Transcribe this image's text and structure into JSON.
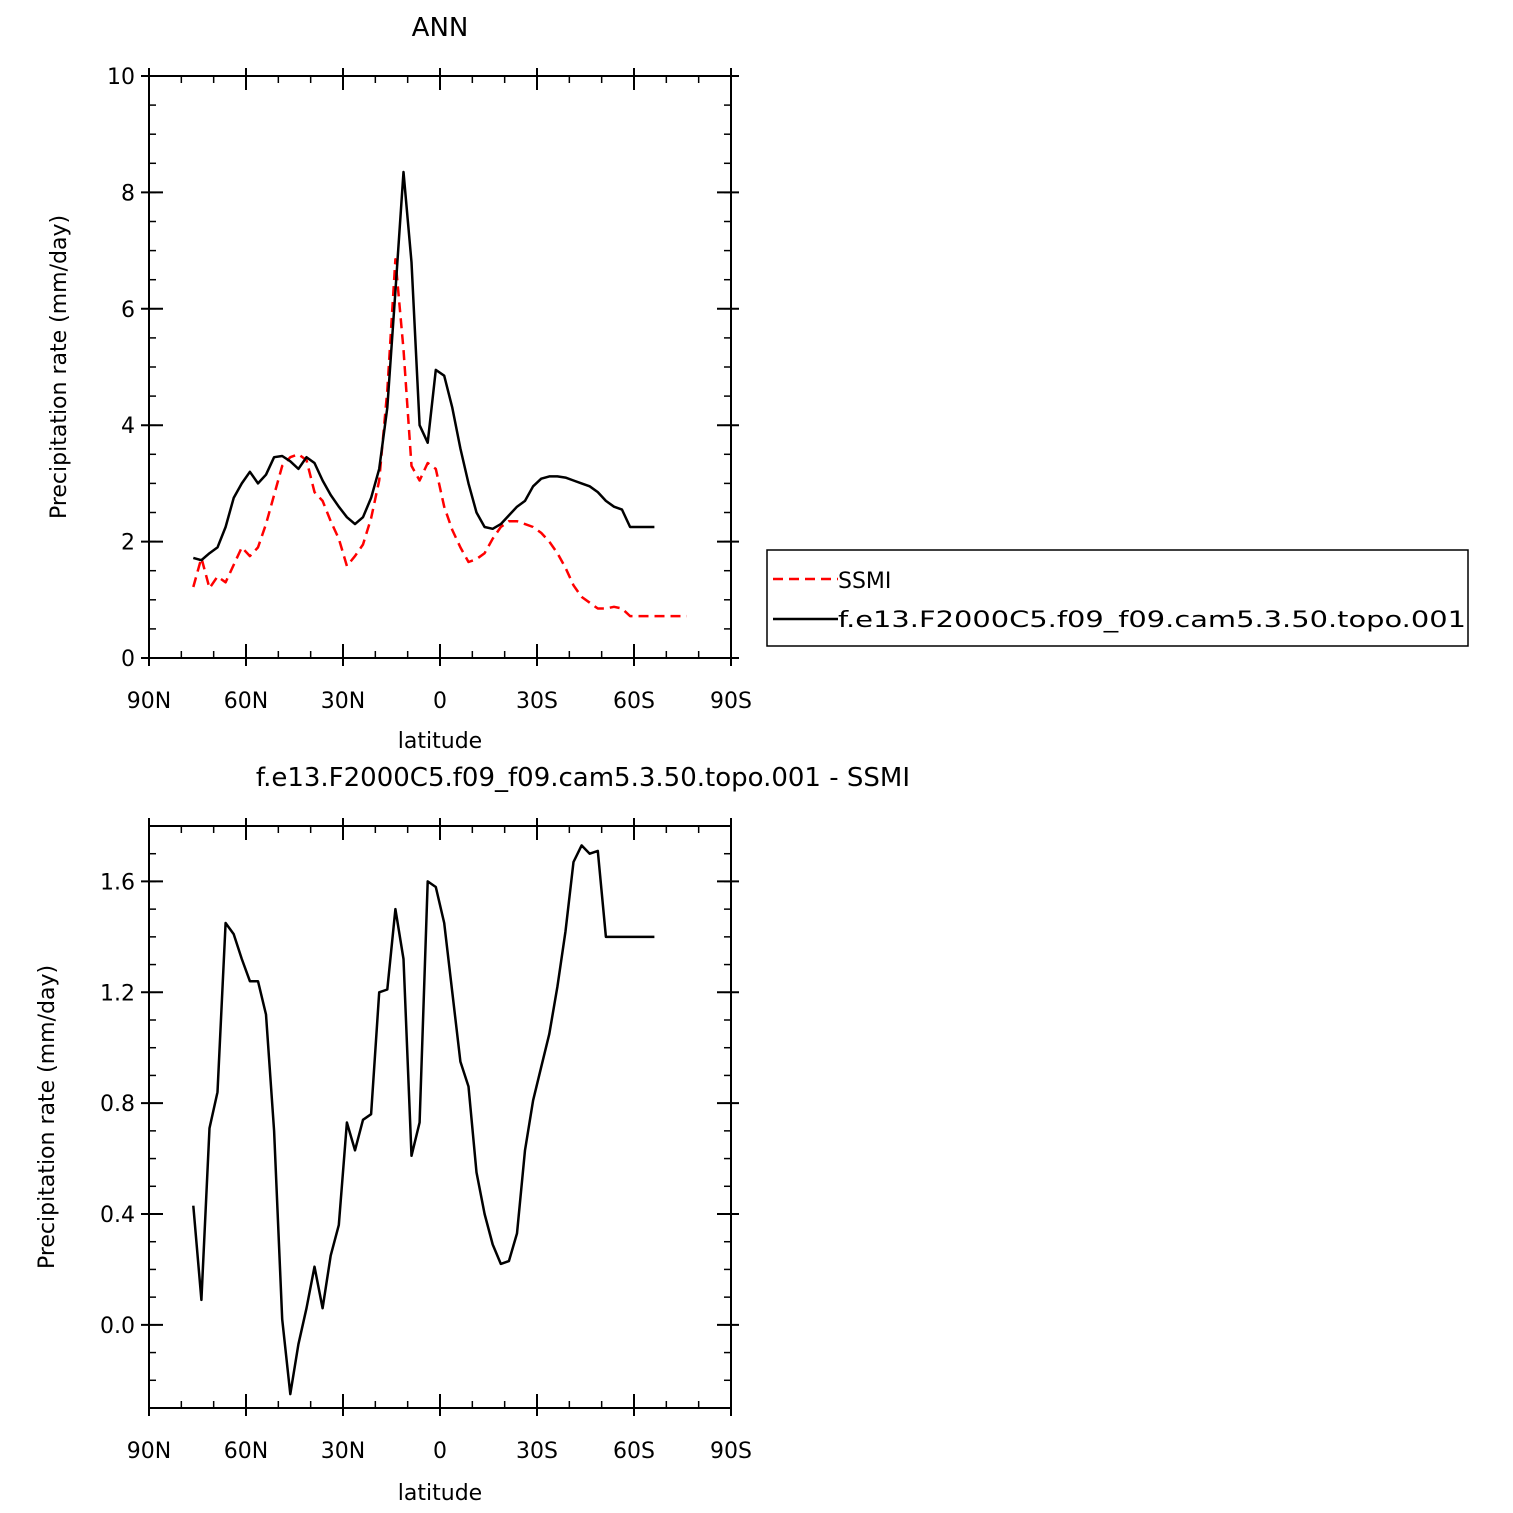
{
  "chart_data": [
    {
      "type": "line",
      "title": "ANN",
      "xlabel": "latitude",
      "ylabel": "Precipitation rate (mm/day)",
      "xlim": [
        90,
        -90
      ],
      "ylim": [
        0,
        10
      ],
      "xticks": [
        90,
        60,
        30,
        0,
        -30,
        -60,
        -90
      ],
      "xtick_labels": [
        "90N",
        "60N",
        "30N",
        "0",
        "30S",
        "60S",
        "90S"
      ],
      "yticks": [
        0,
        2,
        4,
        6,
        8,
        10
      ],
      "ytick_labels": [
        "0",
        "2",
        "4",
        "6",
        "8",
        "10"
      ],
      "grid": false,
      "legend": "right",
      "series": [
        {
          "name": "SSMI",
          "color": "#ff0000",
          "style": "dashed",
          "x": [
            76.3,
            73.8,
            71.3,
            68.8,
            66.3,
            63.8,
            61.3,
            58.8,
            56.3,
            53.8,
            51.3,
            48.8,
            46.3,
            43.8,
            41.3,
            38.8,
            36.3,
            33.8,
            31.3,
            28.8,
            26.3,
            23.8,
            21.3,
            18.8,
            16.3,
            13.8,
            11.3,
            8.8,
            6.3,
            3.8,
            1.3,
            -1.3,
            -3.8,
            -6.3,
            -8.8,
            -11.3,
            -13.8,
            -16.3,
            -18.8,
            -21.3,
            -23.8,
            -26.3,
            -28.8,
            -31.3,
            -33.8,
            -36.3,
            -38.8,
            -41.3,
            -43.8,
            -46.3,
            -48.8,
            -51.3,
            -53.8,
            -56.3,
            -58.8,
            -61.3,
            -63.8,
            -66.3,
            -68.8,
            -71.3,
            -73.8,
            -76.3
          ],
          "values": [
            1.22,
            1.72,
            1.2,
            1.4,
            1.3,
            1.6,
            1.9,
            1.75,
            1.9,
            2.3,
            2.8,
            3.3,
            3.45,
            3.5,
            3.4,
            2.85,
            2.7,
            2.35,
            2.05,
            1.58,
            1.75,
            1.95,
            2.4,
            3.05,
            4.6,
            6.85,
            5.3,
            3.3,
            3.05,
            3.35,
            3.25,
            2.6,
            2.2,
            1.9,
            1.65,
            1.7,
            1.8,
            2.05,
            2.25,
            2.35,
            2.35,
            2.3,
            2.25,
            2.15,
            2.0,
            1.8,
            1.55,
            1.25,
            1.05,
            0.95,
            0.85,
            0.85,
            0.88,
            0.85,
            0.72,
            0.72,
            0.72,
            0.72,
            0.72,
            0.72,
            0.72,
            0.72
          ]
        },
        {
          "name": "f.e13.F2000C5.f09_f09.cam5.3.50.topo.001",
          "color": "#000000",
          "style": "solid",
          "x": [
            76.3,
            73.8,
            71.3,
            68.8,
            66.3,
            63.8,
            61.3,
            58.8,
            56.3,
            53.8,
            51.3,
            48.8,
            46.3,
            43.8,
            41.3,
            38.8,
            36.3,
            33.8,
            31.3,
            28.8,
            26.3,
            23.8,
            21.3,
            18.8,
            16.3,
            13.8,
            11.3,
            8.8,
            6.3,
            3.8,
            1.3,
            -1.3,
            -3.8,
            -6.3,
            -8.8,
            -11.3,
            -13.8,
            -16.3,
            -18.8,
            -21.3,
            -23.8,
            -26.3,
            -28.8,
            -31.3,
            -33.8,
            -36.3,
            -38.8,
            -41.3,
            -43.8,
            -46.3,
            -48.8,
            -51.3,
            -53.8,
            -56.3,
            -58.8,
            -61.3,
            -63.8,
            -66.3
          ],
          "values": [
            1.72,
            1.68,
            1.8,
            1.9,
            2.25,
            2.75,
            3.0,
            3.2,
            3.0,
            3.15,
            3.45,
            3.47,
            3.38,
            3.25,
            3.45,
            3.35,
            3.05,
            2.8,
            2.6,
            2.42,
            2.3,
            2.42,
            2.75,
            3.25,
            4.3,
            6.3,
            8.35,
            6.8,
            4.0,
            3.7,
            4.95,
            4.85,
            4.3,
            3.6,
            3.0,
            2.5,
            2.25,
            2.22,
            2.3,
            2.45,
            2.6,
            2.7,
            2.95,
            3.08,
            3.12,
            3.12,
            3.1,
            3.05,
            3.0,
            2.95,
            2.85,
            2.7,
            2.6,
            2.55,
            2.25,
            2.25,
            2.25,
            2.25
          ]
        }
      ]
    },
    {
      "type": "line",
      "title": "f.e13.F2000C5.f09_f09.cam5.3.50.topo.001 - SSMI",
      "xlabel": "latitude",
      "ylabel": "Precipitation rate (mm/day)",
      "xlim": [
        90,
        -90
      ],
      "ylim": [
        -0.3,
        1.8
      ],
      "xticks": [
        90,
        60,
        30,
        0,
        -30,
        -60,
        -90
      ],
      "xtick_labels": [
        "90N",
        "60N",
        "30N",
        "0",
        "30S",
        "60S",
        "90S"
      ],
      "yticks": [
        0.0,
        0.4,
        0.8,
        1.2,
        1.6
      ],
      "ytick_labels": [
        "0.0",
        "0.4",
        "0.8",
        "1.2",
        "1.6"
      ],
      "grid": false,
      "series": [
        {
          "color": "#000000",
          "style": "solid",
          "x": [
            76.3,
            73.8,
            71.3,
            68.8,
            66.3,
            63.8,
            61.3,
            58.8,
            56.3,
            53.8,
            51.3,
            48.8,
            46.3,
            43.8,
            41.3,
            38.8,
            36.3,
            33.8,
            31.3,
            28.8,
            26.3,
            23.8,
            21.3,
            18.8,
            16.3,
            13.8,
            11.3,
            8.8,
            6.3,
            3.8,
            1.3,
            -1.3,
            -3.8,
            -6.3,
            -8.8,
            -11.3,
            -13.8,
            -16.3,
            -18.8,
            -21.3,
            -23.8,
            -26.3,
            -28.8,
            -31.3,
            -33.8,
            -36.3,
            -38.8,
            -41.3,
            -43.8,
            -46.3,
            -48.8,
            -51.3,
            -53.8,
            -56.3,
            -58.8,
            -61.3,
            -63.8,
            -66.3
          ],
          "values": [
            0.43,
            0.09,
            0.71,
            0.84,
            1.45,
            1.41,
            1.32,
            1.24,
            1.24,
            1.12,
            0.7,
            0.02,
            -0.25,
            -0.07,
            0.06,
            0.21,
            0.06,
            0.25,
            0.36,
            0.73,
            0.63,
            0.74,
            0.76,
            1.2,
            1.21,
            1.5,
            1.32,
            0.61,
            0.73,
            1.6,
            1.58,
            1.45,
            1.2,
            0.95,
            0.86,
            0.55,
            0.4,
            0.29,
            0.22,
            0.23,
            0.33,
            0.63,
            0.81,
            0.93,
            1.05,
            1.22,
            1.42,
            1.67,
            1.73,
            1.7,
            1.71,
            1.4,
            1.4,
            1.4,
            1.4,
            1.4,
            1.4,
            1.4
          ]
        }
      ]
    }
  ]
}
